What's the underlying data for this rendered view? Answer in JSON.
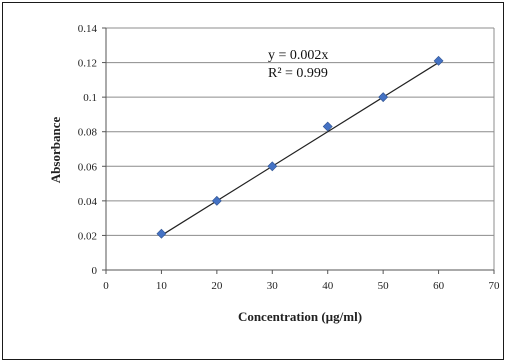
{
  "chart_data": {
    "type": "scatter",
    "xlabel": "Concentration (µg/ml)",
    "ylabel": "Absorbance",
    "xlim": [
      0,
      70
    ],
    "ylim": [
      0,
      0.14
    ],
    "x_ticks": [
      "0",
      "10",
      "20",
      "30",
      "40",
      "50",
      "60",
      "70"
    ],
    "y_ticks": [
      "0",
      "0.02",
      "0.04",
      "0.06",
      "0.08",
      "0.1",
      "0.12",
      "0.14"
    ],
    "grid": "horizontal",
    "points": [
      {
        "x": 10,
        "y": 0.021
      },
      {
        "x": 20,
        "y": 0.04
      },
      {
        "x": 30,
        "y": 0.06
      },
      {
        "x": 40,
        "y": 0.083
      },
      {
        "x": 50,
        "y": 0.1
      },
      {
        "x": 60,
        "y": 0.121
      }
    ],
    "trendline": {
      "slope": 0.002,
      "intercept": 0,
      "x_range": [
        10,
        60
      ]
    },
    "equation": "y = 0.002x",
    "r_squared": "R² = 0.999",
    "marker_color": "#4472c4",
    "line_color": "#222222"
  }
}
